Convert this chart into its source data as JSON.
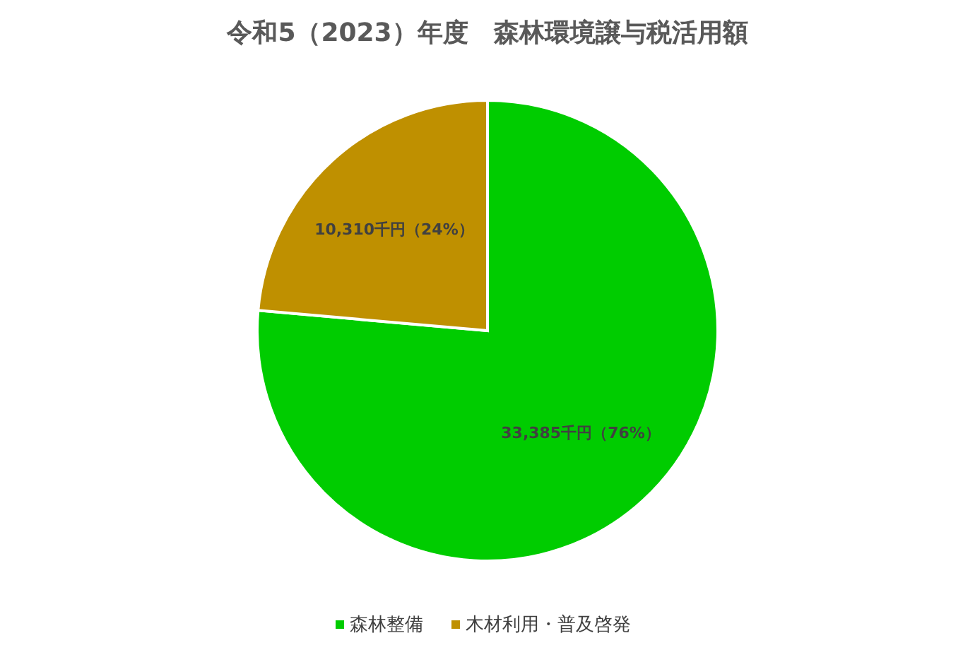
{
  "chart_data": {
    "type": "pie",
    "title": "令和5（2023）年度　森林環境譲与税活用額",
    "categories": [
      "森林整備",
      "木材利用・普及啓発"
    ],
    "values": [
      33385,
      10310
    ],
    "colors": [
      "#00cc00",
      "#bf9000"
    ],
    "value_labels": [
      "33,385千円（76%）",
      "10,310千円（24%）"
    ],
    "legend": "bottom"
  }
}
